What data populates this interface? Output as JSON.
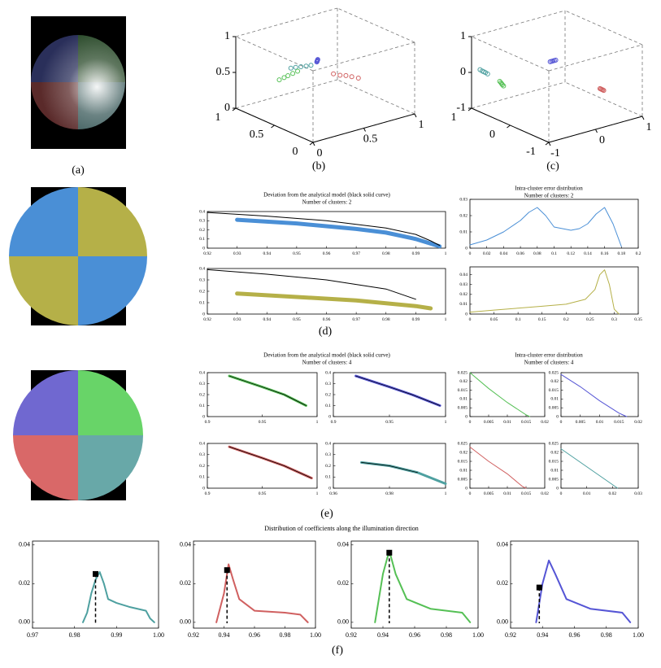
{
  "captions": [
    "(a)",
    "(b)",
    "(c)",
    "(d)",
    "(e)",
    "(f)"
  ],
  "headings": [
    [
      "Deviation from the analytical model (black solid curve)",
      "Number of clusters: 2"
    ],
    [
      "Intra-cluster error distribution",
      "Number of clusters: 2"
    ],
    [
      "Deviation from the analytical model (black solid curve)",
      "Number of clusters: 4"
    ],
    [
      "Intra-cluster error distribution",
      "Number of clusters: 4"
    ],
    [
      "Distribution of coefficients along the illumination direction"
    ]
  ],
  "chart_data": [
    {
      "type": "scatter3d",
      "xlim": [
        0,
        1
      ],
      "ylim": [
        0,
        1
      ],
      "zlim": [
        0,
        1
      ],
      "xticks": [
        0,
        0.5,
        1
      ],
      "yticks": [
        0,
        0.5,
        1
      ],
      "zticks": [
        0,
        0.5,
        1
      ],
      "series": [
        {
          "color": "#5555d5",
          "x": [
            0.78,
            0.79,
            0.8,
            0.81,
            0.82
          ],
          "y": [
            0.63,
            0.64,
            0.65,
            0.66,
            0.67
          ],
          "z": [
            0.5,
            0.5,
            0.5,
            0.5,
            0.5
          ]
        },
        {
          "color": "#4ea0a0",
          "x": [
            0.8,
            0.79,
            0.775,
            0.76,
            0.75
          ],
          "y": [
            0.39,
            0.43,
            0.47,
            0.51,
            0.55
          ],
          "z": [
            0.5,
            0.5,
            0.5,
            0.5,
            0.5
          ]
        },
        {
          "color": "#55c055",
          "x": [
            0.7,
            0.69,
            0.68,
            0.67,
            0.66
          ],
          "y": [
            0.2,
            0.24,
            0.27,
            0.31,
            0.35
          ],
          "z": [
            0.46,
            0.48,
            0.5,
            0.52,
            0.54
          ]
        },
        {
          "color": "#d06060",
          "x": [
            0.42,
            0.4,
            0.39,
            0.38,
            0.36
          ],
          "y": [
            0.52,
            0.57,
            0.62,
            0.67,
            0.72
          ],
          "z": [
            0.55,
            0.52,
            0.5,
            0.47,
            0.44
          ]
        }
      ]
    },
    {
      "type": "scatter3d",
      "xlim": [
        -1,
        1
      ],
      "ylim": [
        -1,
        1
      ],
      "zlim": [
        -1,
        1
      ],
      "xticks": [
        -1,
        0,
        1
      ],
      "yticks": [
        -1,
        0,
        1
      ],
      "zticks": [
        -1,
        0,
        1
      ],
      "series": [
        {
          "color": "#4ea0a0",
          "x": [
            0.95,
            0.92,
            0.9,
            0.88,
            0.85
          ],
          "y": [
            -0.86,
            -0.84,
            -0.82,
            -0.8,
            -0.78
          ],
          "z": [
            0.05,
            0.02,
            0,
            -0.02,
            -0.05
          ]
        },
        {
          "color": "#5555d5",
          "x": [
            0.2,
            0.2,
            0.2,
            0.2,
            0.2
          ],
          "y": [
            0.02,
            0.05,
            0.08,
            0.11,
            0.14
          ],
          "z": [
            0.31,
            0.31,
            0.31,
            0.31,
            0.31
          ]
        },
        {
          "color": "#55c055",
          "x": [
            0.55,
            0.52,
            0.5,
            0.48,
            0.45
          ],
          "y": [
            -0.77,
            -0.77,
            -0.77,
            -0.77,
            -0.77
          ],
          "z": [
            -0.12,
            -0.14,
            -0.16,
            -0.18,
            -0.2
          ]
        },
        {
          "color": "#d06060",
          "x": [
            -0.8,
            -0.8,
            -0.8,
            -0.8,
            -0.8
          ],
          "y": [
            0.26,
            0.28,
            0.3,
            0.32,
            0.34
          ],
          "z": [
            -0.05,
            -0.07,
            -0.09,
            -0.11,
            -0.13
          ]
        }
      ]
    },
    {
      "type": "line",
      "xlim": [
        0.92,
        1
      ],
      "ylim": [
        0,
        0.4
      ],
      "xticks": [
        0.92,
        0.93,
        0.94,
        0.95,
        0.96,
        0.97,
        0.98,
        0.99,
        1
      ],
      "yticks": [
        0,
        0.1,
        0.2,
        0.3,
        0.4
      ],
      "series": [
        {
          "color": "#4a8fd6",
          "line_width": 5,
          "x": [
            0.93,
            0.95,
            0.97,
            0.98,
            0.99,
            0.995,
            0.998
          ],
          "values": [
            0.31,
            0.27,
            0.21,
            0.17,
            0.1,
            0.05,
            0.02
          ]
        },
        {
          "color": "#000000",
          "line_width": 1,
          "x": [
            0.92,
            0.94,
            0.96,
            0.98,
            0.99,
            0.995,
            0.998
          ],
          "values": [
            0.39,
            0.35,
            0.3,
            0.22,
            0.15,
            0.08,
            0.03
          ]
        }
      ]
    },
    {
      "type": "line",
      "xlim": [
        0.92,
        1
      ],
      "ylim": [
        0,
        0.4
      ],
      "xticks": [
        0.92,
        0.93,
        0.94,
        0.95,
        0.96,
        0.97,
        0.98,
        0.99,
        1
      ],
      "yticks": [
        0,
        0.1,
        0.2,
        0.3,
        0.4
      ],
      "series": [
        {
          "color": "#b5b048",
          "line_width": 5,
          "x": [
            0.93,
            0.95,
            0.97,
            0.99,
            0.995
          ],
          "values": [
            0.18,
            0.15,
            0.12,
            0.07,
            0.05
          ]
        },
        {
          "color": "#000000",
          "line_width": 1,
          "x": [
            0.92,
            0.94,
            0.96,
            0.98,
            0.99
          ],
          "values": [
            0.39,
            0.35,
            0.3,
            0.22,
            0.13
          ]
        }
      ]
    },
    {
      "type": "line",
      "xlim": [
        0,
        0.2
      ],
      "ylim": [
        0,
        0.03
      ],
      "xticks": [
        0,
        0.02,
        0.04,
        0.06,
        0.08,
        0.1,
        0.12,
        0.14,
        0.16,
        0.18,
        0.2
      ],
      "yticks": [
        0,
        0.01,
        0.02,
        0.03
      ],
      "series": [
        {
          "color": "#4a8fd6",
          "line_width": 1,
          "x": [
            0,
            0.02,
            0.04,
            0.06,
            0.07,
            0.08,
            0.09,
            0.1,
            0.11,
            0.12,
            0.13,
            0.14,
            0.15,
            0.16,
            0.17,
            0.18
          ],
          "values": [
            0.002,
            0.005,
            0.01,
            0.017,
            0.022,
            0.025,
            0.02,
            0.013,
            0.012,
            0.011,
            0.012,
            0.015,
            0.021,
            0.025,
            0.015,
            0.001
          ]
        }
      ]
    },
    {
      "type": "line",
      "xlim": [
        0,
        0.35
      ],
      "ylim": [
        0,
        0.048
      ],
      "xticks": [
        0,
        0.05,
        0.1,
        0.15,
        0.2,
        0.25,
        0.3,
        0.35
      ],
      "yticks": [
        0,
        0.01,
        0.02,
        0.03,
        0.04
      ],
      "series": [
        {
          "color": "#b5b048",
          "line_width": 1,
          "x": [
            0,
            0.05,
            0.1,
            0.15,
            0.2,
            0.24,
            0.26,
            0.27,
            0.28,
            0.29,
            0.3,
            0.31
          ],
          "values": [
            0.002,
            0.004,
            0.006,
            0.008,
            0.01,
            0.015,
            0.025,
            0.04,
            0.045,
            0.03,
            0.005,
            0
          ]
        }
      ]
    },
    {
      "type": "line",
      "xlim": [
        0.9,
        1
      ],
      "ylim": [
        0,
        0.4
      ],
      "xticks": [
        0.9,
        0.95,
        1
      ],
      "yticks": [
        0,
        0.1,
        0.2,
        0.3,
        0.4
      ],
      "series": [
        {
          "color": "#55c055",
          "line_width": 3,
          "x": [
            0.92,
            0.95,
            0.97,
            0.99
          ],
          "values": [
            0.37,
            0.27,
            0.2,
            0.1
          ]
        },
        {
          "color": "#000000",
          "line_width": 0.7,
          "x": [
            0.92,
            0.95,
            0.97,
            0.99
          ],
          "values": [
            0.37,
            0.27,
            0.2,
            0.1
          ]
        }
      ]
    },
    {
      "type": "line",
      "xlim": [
        0.9,
        1
      ],
      "ylim": [
        0,
        0.4
      ],
      "xticks": [
        0.9,
        0.95,
        1
      ],
      "yticks": [
        0,
        0.1,
        0.2,
        0.3,
        0.4
      ],
      "series": [
        {
          "color": "#5555d5",
          "line_width": 3,
          "x": [
            0.92,
            0.95,
            0.97,
            0.995
          ],
          "values": [
            0.37,
            0.27,
            0.2,
            0.1
          ]
        },
        {
          "color": "#000000",
          "line_width": 0.7,
          "x": [
            0.92,
            0.95,
            0.97,
            0.995
          ],
          "values": [
            0.37,
            0.27,
            0.2,
            0.1
          ]
        }
      ]
    },
    {
      "type": "line",
      "xlim": [
        0.9,
        1
      ],
      "ylim": [
        0,
        0.4
      ],
      "xticks": [
        0.9,
        0.95,
        1
      ],
      "yticks": [
        0,
        0.1,
        0.2,
        0.3,
        0.4
      ],
      "series": [
        {
          "color": "#d06060",
          "line_width": 3,
          "x": [
            0.92,
            0.95,
            0.97,
            0.995
          ],
          "values": [
            0.37,
            0.27,
            0.2,
            0.09
          ]
        },
        {
          "color": "#000000",
          "line_width": 0.7,
          "x": [
            0.92,
            0.95,
            0.97,
            0.995
          ],
          "values": [
            0.37,
            0.27,
            0.2,
            0.09
          ]
        }
      ]
    },
    {
      "type": "line",
      "xlim": [
        0.96,
        1
      ],
      "ylim": [
        0,
        0.4
      ],
      "xticks": [
        0.96,
        0.98,
        1
      ],
      "yticks": [
        0,
        0.1,
        0.2,
        0.3,
        0.4
      ],
      "series": [
        {
          "color": "#4ea0a0",
          "line_width": 3,
          "x": [
            0.97,
            0.98,
            0.99,
            1
          ],
          "values": [
            0.23,
            0.2,
            0.14,
            0.04
          ]
        },
        {
          "color": "#000000",
          "line_width": 0.7,
          "x": [
            0.97,
            0.98,
            0.99
          ],
          "values": [
            0.23,
            0.2,
            0.14
          ]
        }
      ]
    },
    {
      "type": "line",
      "xlim": [
        0,
        0.02
      ],
      "ylim": [
        0,
        0.025
      ],
      "xticks": [
        0,
        0.005,
        0.01,
        0.015,
        0.02
      ],
      "yticks": [
        0,
        0.005,
        0.01,
        0.015,
        0.02,
        0.025
      ],
      "series": [
        {
          "color": "#55c055",
          "line_width": 1,
          "x": [
            0,
            0.005,
            0.01,
            0.015,
            0.016
          ],
          "values": [
            0.025,
            0.016,
            0.008,
            0.001,
            0
          ]
        }
      ]
    },
    {
      "type": "line",
      "xlim": [
        0,
        0.02
      ],
      "ylim": [
        0,
        0.025
      ],
      "xticks": [
        0,
        0.005,
        0.01,
        0.015,
        0.02
      ],
      "yticks": [
        0,
        0.005,
        0.01,
        0.015,
        0.02,
        0.025
      ],
      "series": [
        {
          "color": "#5555d5",
          "line_width": 1,
          "x": [
            0,
            0.005,
            0.01,
            0.015,
            0.017
          ],
          "values": [
            0.024,
            0.017,
            0.009,
            0.002,
            0
          ]
        }
      ]
    },
    {
      "type": "line",
      "xlim": [
        0,
        0.02
      ],
      "ylim": [
        0,
        0.025
      ],
      "xticks": [
        0,
        0.005,
        0.01,
        0.015,
        0.02
      ],
      "yticks": [
        0,
        0.005,
        0.01,
        0.015,
        0.02,
        0.025
      ],
      "series": [
        {
          "color": "#d06060",
          "line_width": 1,
          "x": [
            0,
            0.005,
            0.01,
            0.014,
            0.015
          ],
          "values": [
            0.023,
            0.015,
            0.008,
            0.001,
            0
          ]
        }
      ]
    },
    {
      "type": "line",
      "xlim": [
        0,
        0.03
      ],
      "ylim": [
        0,
        0.025
      ],
      "xticks": [
        0,
        0.01,
        0.02,
        0.03
      ],
      "yticks": [
        0,
        0.005,
        0.01,
        0.015,
        0.02,
        0.025
      ],
      "series": [
        {
          "color": "#4ea0a0",
          "line_width": 1,
          "x": [
            0,
            0.01,
            0.02,
            0.022
          ],
          "values": [
            0.022,
            0.012,
            0.002,
            0
          ]
        }
      ]
    },
    {
      "type": "line",
      "xlim": [
        0.97,
        1
      ],
      "ylim": [
        -0.003,
        0.042
      ],
      "xticks": [
        0.97,
        0.98,
        0.99,
        {
          "value": 1,
          "label": "1.00"
        }
      ],
      "yticks": [
        {
          "value": 0,
          "label": "0.00"
        },
        0.02,
        0.04
      ],
      "marker": {
        "x": 0.985,
        "y": 0.025
      },
      "series": [
        {
          "color": "#4ea0a0",
          "line_width": 2,
          "x": [
            0.982,
            0.983,
            0.984,
            0.985,
            0.986,
            0.987,
            0.988,
            0.99,
            0.993,
            0.997,
            0.998,
            0.999
          ],
          "values": [
            0,
            0.005,
            0.015,
            0.022,
            0.026,
            0.02,
            0.012,
            0.01,
            0.008,
            0.006,
            0.002,
            0
          ]
        }
      ]
    },
    {
      "type": "line",
      "xlim": [
        0.92,
        1
      ],
      "ylim": [
        -0.003,
        0.042
      ],
      "xticks": [
        0.92,
        0.94,
        0.96,
        0.98,
        {
          "value": 1,
          "label": "1.00"
        }
      ],
      "yticks": [
        {
          "value": 0,
          "label": "0.00"
        },
        0.02,
        0.04
      ],
      "marker": {
        "x": 0.942,
        "y": 0.027
      },
      "series": [
        {
          "color": "#d06060",
          "line_width": 2,
          "x": [
            0.935,
            0.94,
            0.943,
            0.946,
            0.95,
            0.96,
            0.98,
            0.99,
            0.995
          ],
          "values": [
            0,
            0.015,
            0.03,
            0.022,
            0.012,
            0.006,
            0.005,
            0.004,
            0
          ]
        }
      ]
    },
    {
      "type": "line",
      "xlim": [
        0.92,
        1
      ],
      "ylim": [
        -0.003,
        0.042
      ],
      "xticks": [
        0.92,
        0.94,
        0.96,
        0.98,
        {
          "value": 1,
          "label": "1.00"
        }
      ],
      "yticks": [
        {
          "value": 0,
          "label": "0.00"
        },
        0.02,
        0.04
      ],
      "marker": {
        "x": 0.944,
        "y": 0.036
      },
      "series": [
        {
          "color": "#55c055",
          "line_width": 2,
          "x": [
            0.935,
            0.94,
            0.944,
            0.948,
            0.955,
            0.97,
            0.99,
            0.995
          ],
          "values": [
            0,
            0.025,
            0.037,
            0.025,
            0.012,
            0.007,
            0.005,
            0
          ]
        }
      ]
    },
    {
      "type": "line",
      "xlim": [
        0.92,
        1
      ],
      "ylim": [
        -0.003,
        0.042
      ],
      "xticks": [
        0.92,
        0.94,
        0.96,
        0.98,
        {
          "value": 1,
          "label": "1.00"
        }
      ],
      "yticks": [
        {
          "value": 0,
          "label": "0.00"
        },
        0.02,
        0.04
      ],
      "marker": {
        "x": 0.938,
        "y": 0.018
      },
      "series": [
        {
          "color": "#5555d5",
          "line_width": 2,
          "x": [
            0.936,
            0.94,
            0.944,
            0.948,
            0.955,
            0.97,
            0.99,
            0.995
          ],
          "values": [
            0,
            0.02,
            0.032,
            0.025,
            0.012,
            0.007,
            0.005,
            0
          ]
        }
      ]
    }
  ]
}
